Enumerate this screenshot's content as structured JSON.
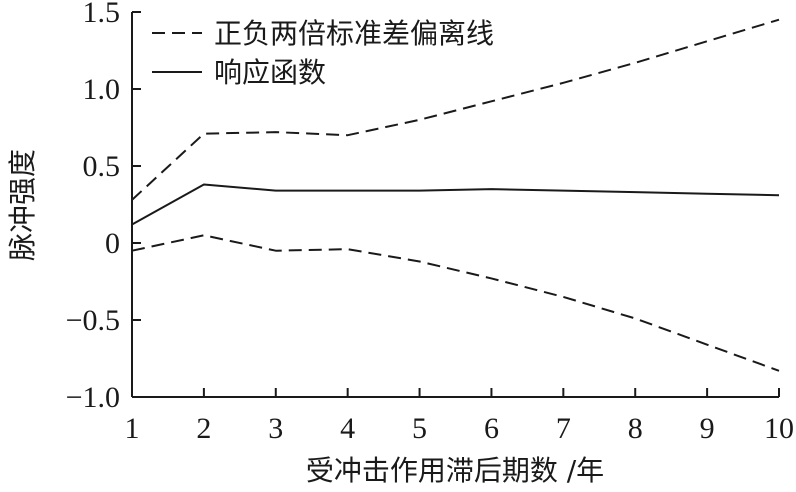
{
  "chart_data": {
    "type": "line",
    "xlabel": "受冲击作用滞后期数 /年",
    "ylabel": "脉冲强度",
    "x": [
      1,
      2,
      3,
      4,
      5,
      6,
      7,
      8,
      9,
      10
    ],
    "xlim": [
      1,
      10
    ],
    "ylim": [
      -1.0,
      1.5
    ],
    "xticks": [
      "1",
      "2",
      "3",
      "4",
      "5",
      "6",
      "7",
      "8",
      "9",
      "10"
    ],
    "yticks": [
      {
        "value": 1.5,
        "label": "1.5"
      },
      {
        "value": 1.0,
        "label": "1.0"
      },
      {
        "value": 0.5,
        "label": "0.5"
      },
      {
        "value": 0,
        "label": "0"
      },
      {
        "value": -0.5,
        "label": "−0.5"
      },
      {
        "value": -1.0,
        "label": "−1.0"
      }
    ],
    "grid": false,
    "legend": {
      "placement": "top-left",
      "entries": [
        {
          "label": "正负两倍标准差偏离线",
          "style": "dashed"
        },
        {
          "label": "响应函数",
          "style": "solid"
        }
      ]
    },
    "series": [
      {
        "name": "正负两倍标准差偏离线",
        "role": "upper",
        "style": "dashed",
        "values": [
          0.28,
          0.71,
          0.72,
          0.7,
          0.8,
          0.92,
          1.04,
          1.17,
          1.31,
          1.45
        ]
      },
      {
        "name": "响应函数",
        "style": "solid",
        "values": [
          0.12,
          0.38,
          0.34,
          0.34,
          0.34,
          0.35,
          0.34,
          0.33,
          0.32,
          0.31
        ]
      },
      {
        "name": "正负两倍标准差偏离线",
        "role": "lower",
        "style": "dashed",
        "values": [
          -0.05,
          0.05,
          -0.05,
          -0.04,
          -0.12,
          -0.23,
          -0.35,
          -0.49,
          -0.66,
          -0.83
        ]
      }
    ]
  }
}
